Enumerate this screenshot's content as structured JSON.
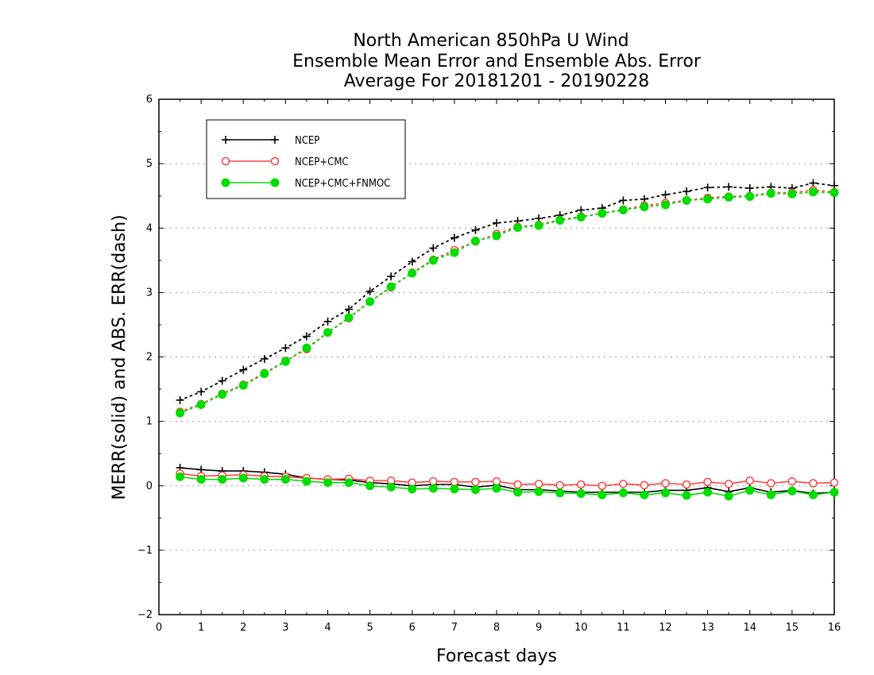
{
  "chart_data": {
    "type": "line",
    "title": [
      "North American 850hPa U Wind",
      "Ensemble Mean Error and Ensemble Abs. Error",
      "Average For 20181201 - 20190228"
    ],
    "xlabel": "Forecast days",
    "ylabel": "MERR(solid) and ABS. ERR(dash)",
    "xlim": [
      0,
      16
    ],
    "ylim": [
      -2,
      6
    ],
    "x_ticks": [
      "0",
      "1",
      "2",
      "3",
      "4",
      "5",
      "6",
      "7",
      "8",
      "9",
      "10",
      "11",
      "12",
      "13",
      "14",
      "15",
      "16"
    ],
    "y_ticks": [
      "6",
      "5",
      "4",
      "3",
      "2",
      "1",
      "0",
      "−1",
      "−2"
    ],
    "grid": "horizontal dotted",
    "legend_position": "top-left",
    "x": [
      0.5,
      1,
      1.5,
      2,
      2.5,
      3,
      3.5,
      4,
      4.5,
      5,
      5.5,
      6,
      6.5,
      7,
      7.5,
      8,
      8.5,
      9,
      9.5,
      10,
      10.5,
      11,
      11.5,
      12,
      12.5,
      13,
      13.5,
      14,
      14.5,
      15,
      15.5,
      16
    ],
    "series": [
      {
        "name": "NCEP",
        "color": "#000000",
        "marker": "plus",
        "abs_err": [
          1.33,
          1.46,
          1.63,
          1.8,
          1.97,
          2.14,
          2.32,
          2.55,
          2.74,
          3.02,
          3.25,
          3.48,
          3.69,
          3.85,
          3.97,
          4.08,
          4.11,
          4.15,
          4.2,
          4.28,
          4.31,
          4.43,
          4.45,
          4.52,
          4.57,
          4.63,
          4.64,
          4.62,
          4.64,
          4.62,
          4.7,
          4.66
        ],
        "mean_err": [
          0.28,
          0.25,
          0.23,
          0.23,
          0.21,
          0.18,
          0.12,
          0.1,
          0.09,
          0.05,
          0.03,
          0.0,
          0.02,
          0.02,
          -0.02,
          0.01,
          -0.06,
          -0.06,
          -0.08,
          -0.1,
          -0.1,
          -0.1,
          -0.1,
          -0.07,
          -0.07,
          -0.03,
          -0.09,
          -0.03,
          -0.1,
          -0.07,
          -0.12,
          -0.1
        ]
      },
      {
        "name": "NCEP+CMC",
        "color": "#ff4040",
        "marker": "open-circle",
        "abs_err": [
          1.15,
          1.27,
          1.43,
          1.57,
          1.75,
          1.94,
          2.12,
          2.38,
          2.6,
          2.86,
          3.08,
          3.31,
          3.51,
          3.66,
          3.79,
          3.91,
          4.02,
          4.05,
          4.13,
          4.18,
          4.23,
          4.29,
          4.35,
          4.39,
          4.43,
          4.47,
          4.49,
          4.5,
          4.55,
          4.55,
          4.59,
          4.56
        ],
        "mean_err": [
          0.19,
          0.15,
          0.16,
          0.17,
          0.15,
          0.14,
          0.12,
          0.1,
          0.11,
          0.08,
          0.08,
          0.05,
          0.07,
          0.06,
          0.06,
          0.07,
          0.02,
          0.03,
          0.01,
          0.02,
          0.0,
          0.03,
          0.01,
          0.04,
          0.02,
          0.06,
          0.03,
          0.08,
          0.04,
          0.07,
          0.04,
          0.05
        ]
      },
      {
        "name": "NCEP+CMC+FNMOC",
        "color": "#00dd00",
        "marker": "filled-circle",
        "abs_err": [
          1.13,
          1.26,
          1.42,
          1.56,
          1.74,
          1.93,
          2.14,
          2.38,
          2.61,
          2.86,
          3.09,
          3.3,
          3.5,
          3.62,
          3.8,
          3.88,
          4.01,
          4.04,
          4.12,
          4.17,
          4.23,
          4.28,
          4.33,
          4.36,
          4.43,
          4.45,
          4.48,
          4.49,
          4.54,
          4.53,
          4.56,
          4.55
        ],
        "mean_err": [
          0.14,
          0.1,
          0.1,
          0.12,
          0.1,
          0.1,
          0.07,
          0.05,
          0.05,
          0.0,
          -0.02,
          -0.05,
          -0.04,
          -0.05,
          -0.06,
          -0.04,
          -0.1,
          -0.09,
          -0.11,
          -0.12,
          -0.14,
          -0.11,
          -0.14,
          -0.11,
          -0.15,
          -0.1,
          -0.16,
          -0.07,
          -0.14,
          -0.08,
          -0.14,
          -0.1
        ]
      }
    ]
  }
}
